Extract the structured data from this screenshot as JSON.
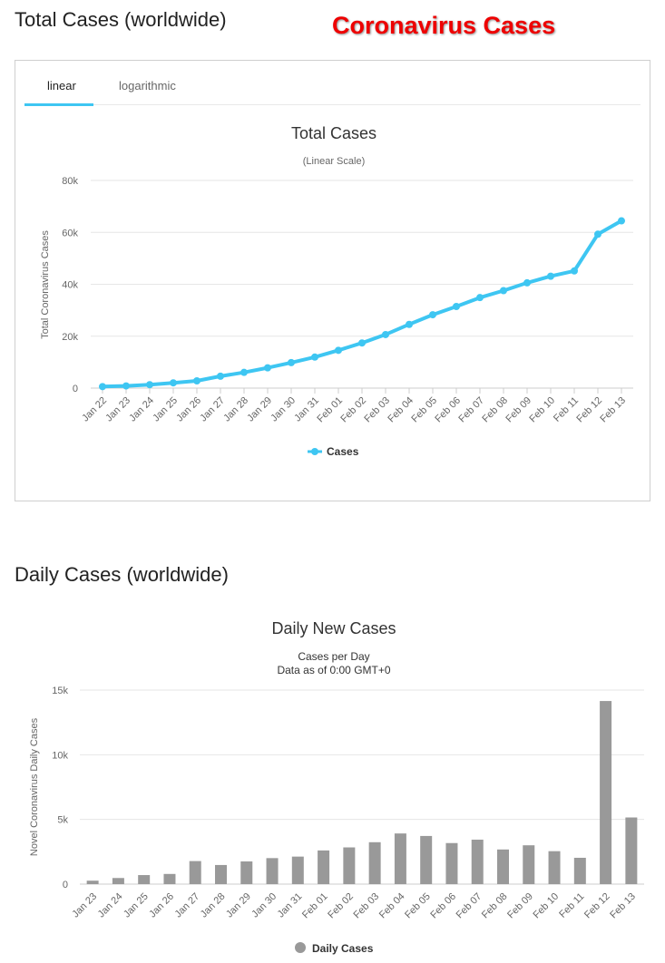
{
  "page": {
    "total_heading": "Total Cases (worldwide)",
    "brand_title": "Coronavirus Cases",
    "daily_heading": "Daily Cases (worldwide)"
  },
  "tabs": [
    {
      "label": "linear",
      "active": true
    },
    {
      "label": "logarithmic",
      "active": false
    }
  ],
  "colors": {
    "accent": "#3ec6f2",
    "bar": "#999999",
    "brand": "#ee0000"
  },
  "chart_data": [
    {
      "type": "line",
      "title": "Total Cases",
      "subtitle": "(Linear Scale)",
      "xlabel": "",
      "ylabel": "Total Coronavirus Cases",
      "ylim": [
        0,
        80000
      ],
      "yticks": [
        0,
        20000,
        40000,
        60000,
        80000
      ],
      "ytick_labels": [
        "0",
        "20k",
        "40k",
        "60k",
        "80k"
      ],
      "grid": true,
      "legend": "bottom-center",
      "categories": [
        "Jan 22",
        "Jan 23",
        "Jan 24",
        "Jan 25",
        "Jan 26",
        "Jan 27",
        "Jan 28",
        "Jan 29",
        "Jan 30",
        "Jan 31",
        "Feb 01",
        "Feb 02",
        "Feb 03",
        "Feb 04",
        "Feb 05",
        "Feb 06",
        "Feb 07",
        "Feb 08",
        "Feb 09",
        "Feb 10",
        "Feb 11",
        "Feb 12",
        "Feb 13"
      ],
      "series": [
        {
          "name": "Cases",
          "values": [
            580,
            845,
            1317,
            2015,
            2800,
            4581,
            6058,
            7813,
            9823,
            11950,
            14553,
            17391,
            20630,
            24545,
            28266,
            31439,
            34876,
            37552,
            40553,
            43099,
            45134,
            59287,
            64438
          ]
        }
      ]
    },
    {
      "type": "bar",
      "title": "Daily New Cases",
      "subtitle": [
        "Cases per Day",
        "Data as of 0:00 GMT+0"
      ],
      "xlabel": "",
      "ylabel": "Novel Coronavirus Daily Cases",
      "ylim": [
        0,
        15000
      ],
      "yticks": [
        0,
        5000,
        10000,
        15000
      ],
      "ytick_labels": [
        "0",
        "5k",
        "10k",
        "15k"
      ],
      "grid": true,
      "legend": "bottom-center",
      "categories": [
        "Jan 23",
        "Jan 24",
        "Jan 25",
        "Jan 26",
        "Jan 27",
        "Jan 28",
        "Jan 29",
        "Jan 30",
        "Jan 31",
        "Feb 01",
        "Feb 02",
        "Feb 03",
        "Feb 04",
        "Feb 05",
        "Feb 06",
        "Feb 07",
        "Feb 08",
        "Feb 09",
        "Feb 10",
        "Feb 11",
        "Feb 12",
        "Feb 13"
      ],
      "series": [
        {
          "name": "Daily Cases",
          "values": [
            265,
            472,
            698,
            785,
            1781,
            1477,
            1755,
            2010,
            2127,
            2603,
            2838,
            3239,
            3915,
            3721,
            3173,
            3437,
            2676,
            3001,
            2546,
            2035,
            14153,
            5151
          ]
        }
      ]
    }
  ]
}
